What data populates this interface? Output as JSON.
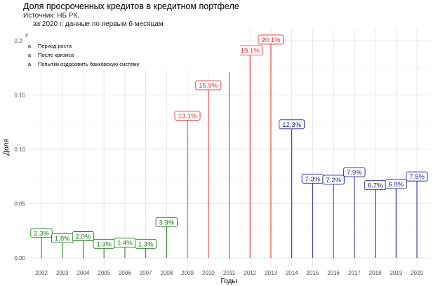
{
  "chart_data": {
    "type": "bar",
    "title": "Доля просроченных кредитов в кредитном портфеле",
    "subtitle_line1": "Источник: НБ РК,",
    "subtitle_line2": "за 2020 г. данные по первым 6 месяцам",
    "xlabel": "Годы",
    "ylabel": "Доля",
    "ylim": [
      0,
      0.2
    ],
    "yticks": [
      "0.00",
      "0.05",
      "0.10",
      "0.15",
      "0.20"
    ],
    "ytick_values": [
      0,
      0.05,
      0.1,
      0.15,
      0.2
    ],
    "grid": true,
    "legend": {
      "title": "z",
      "position": "top-left",
      "entries": [
        {
          "key": "Период роста",
          "color": "#1a7a1a",
          "symbol": "a"
        },
        {
          "key": "После кризиса",
          "color": "#e8282b",
          "symbol": "a"
        },
        {
          "key": "Попытки оздоровить банковскую систему",
          "color": "#1c1c9a",
          "symbol": "a"
        }
      ]
    },
    "categories": [
      "2002",
      "2003",
      "2004",
      "2005",
      "2006",
      "2007",
      "2008",
      "2009",
      "2010",
      "2011",
      "2012",
      "2013",
      "2014",
      "2015",
      "2016",
      "2017",
      "2018",
      "2019",
      "2020"
    ],
    "values": [
      0.023,
      0.018,
      0.02,
      0.013,
      0.014,
      0.013,
      0.033,
      0.131,
      0.159,
      0.171,
      0.191,
      0.201,
      0.123,
      0.073,
      0.072,
      0.079,
      0.067,
      0.068,
      0.075
    ],
    "labels": [
      "2.3%",
      "1.8%",
      "2.0%",
      "1.3%",
      "1.4%",
      "1.3%",
      "3.3%",
      "13.1%",
      "15.9%",
      "",
      "19.1%",
      "20.1%",
      "12.3%",
      "7.3%",
      "7.2%",
      "7.9%",
      "6.7%",
      "6.8%",
      "7.5%"
    ],
    "groups": [
      0,
      0,
      0,
      0,
      0,
      0,
      0,
      1,
      1,
      1,
      1,
      1,
      2,
      2,
      2,
      2,
      2,
      2,
      2
    ]
  }
}
